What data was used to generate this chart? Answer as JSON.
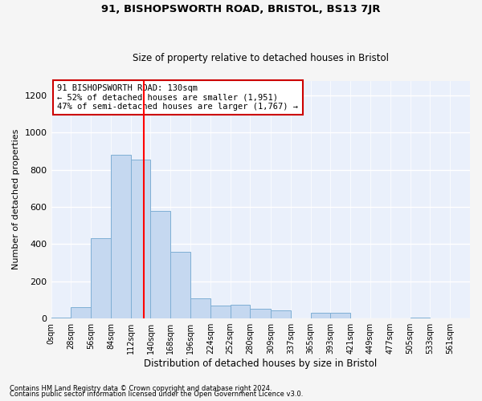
{
  "title1": "91, BISHOPSWORTH ROAD, BRISTOL, BS13 7JR",
  "title2": "Size of property relative to detached houses in Bristol",
  "xlabel": "Distribution of detached houses by size in Bristol",
  "ylabel": "Number of detached properties",
  "annotation_line1": "91 BISHOPSWORTH ROAD: 130sqm",
  "annotation_line2": "← 52% of detached houses are smaller (1,951)",
  "annotation_line3": "47% of semi-detached houses are larger (1,767) →",
  "property_size": 130,
  "bin_width": 28,
  "bin_starts": [
    0,
    28,
    56,
    84,
    112,
    140,
    168,
    196,
    224,
    252,
    280,
    309,
    337,
    365,
    393,
    421,
    449,
    477,
    505,
    533,
    561
  ],
  "bar_labels": [
    "0sqm",
    "28sqm",
    "56sqm",
    "84sqm",
    "112sqm",
    "140sqm",
    "168sqm",
    "196sqm",
    "224sqm",
    "252sqm",
    "280sqm",
    "309sqm",
    "337sqm",
    "365sqm",
    "393sqm",
    "421sqm",
    "449sqm",
    "477sqm",
    "505sqm",
    "533sqm",
    "561sqm"
  ],
  "bar_heights": [
    5,
    60,
    430,
    880,
    855,
    580,
    360,
    110,
    70,
    75,
    50,
    45,
    0,
    30,
    30,
    0,
    0,
    0,
    5,
    0,
    0
  ],
  "bar_color": "#c5d8f0",
  "bar_edge_color": "#7fafd4",
  "red_line_x": 130,
  "annotation_box_color": "#ffffff",
  "annotation_box_edge": "#cc0000",
  "bg_color": "#eaf0fb",
  "grid_color": "#ffffff",
  "fig_bg_color": "#f5f5f5",
  "footer1": "Contains HM Land Registry data © Crown copyright and database right 2024.",
  "footer2": "Contains public sector information licensed under the Open Government Licence v3.0.",
  "ylim": [
    0,
    1280
  ],
  "yticks": [
    0,
    200,
    400,
    600,
    800,
    1000,
    1200
  ]
}
